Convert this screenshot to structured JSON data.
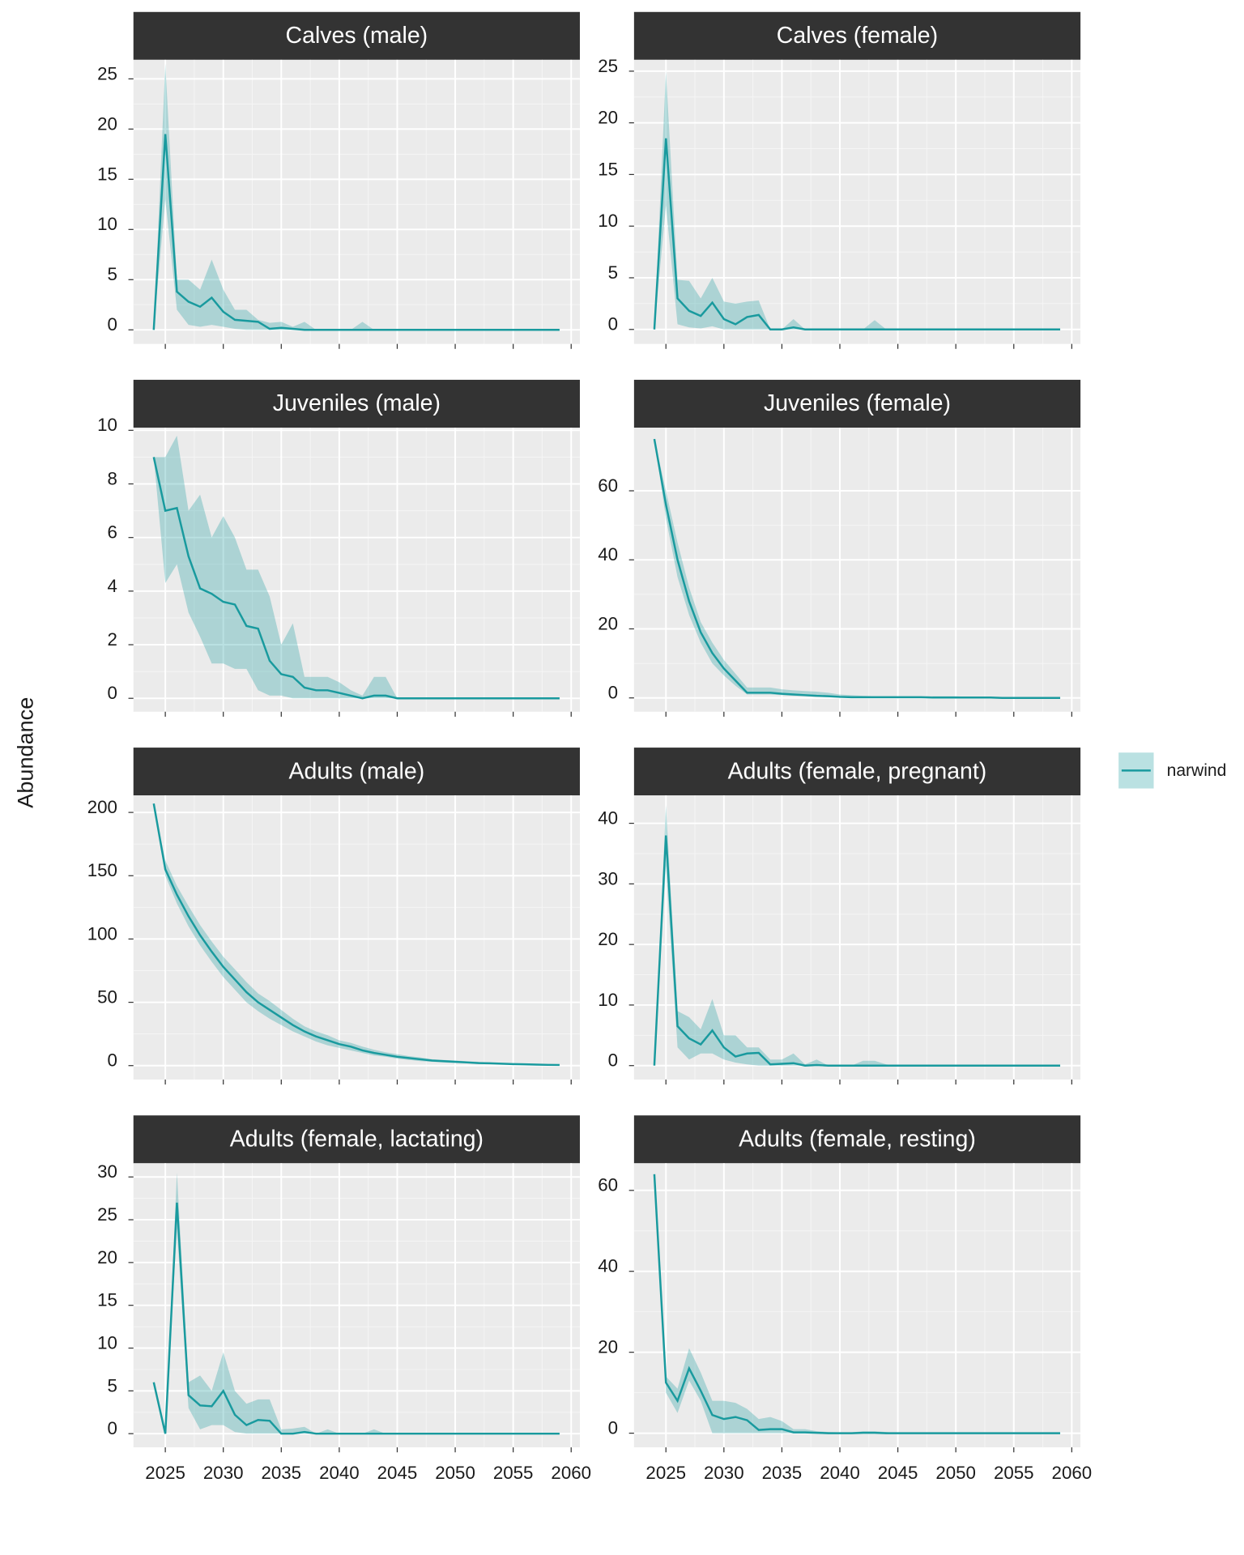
{
  "chart_data": {
    "type": "line",
    "ylabel": "Abundance",
    "series_name": "narwind",
    "color": "#199a9e",
    "fill_alpha": 0.3,
    "x": [
      2024,
      2025,
      2026,
      2027,
      2028,
      2029,
      2030,
      2031,
      2032,
      2033,
      2034,
      2035,
      2036,
      2037,
      2038,
      2039,
      2040,
      2041,
      2042,
      2043,
      2044,
      2045,
      2046,
      2047,
      2048,
      2049,
      2050,
      2051,
      2052,
      2053,
      2054,
      2055,
      2056,
      2057,
      2058,
      2059
    ],
    "xlim": [
      2022.25,
      2060.75
    ],
    "xticks": [
      2025,
      2030,
      2035,
      2040,
      2045,
      2050,
      2055,
      2060
    ],
    "panels": [
      {
        "title": "Calves (male)",
        "ylim": [
          -1.4,
          26.9
        ],
        "yticks": [
          0,
          5,
          10,
          15,
          20,
          25
        ],
        "values": [
          0,
          19.5,
          3.8,
          2.8,
          2.3,
          3.2,
          1.8,
          1.0,
          0.9,
          0.8,
          0.1,
          0.2,
          0.1,
          0,
          0,
          0,
          0,
          0,
          0,
          0,
          0,
          0,
          0,
          0,
          0,
          0,
          0,
          0,
          0,
          0,
          0,
          0,
          0,
          0,
          0,
          0
        ],
        "lower": [
          0,
          13,
          2,
          0.5,
          0.3,
          0.5,
          0.3,
          0.1,
          0,
          0,
          0,
          0,
          0,
          0,
          0,
          0,
          0,
          0,
          0,
          0,
          0,
          0,
          0,
          0,
          0,
          0,
          0,
          0,
          0,
          0,
          0,
          0,
          0,
          0,
          0,
          0
        ],
        "upper": [
          0,
          26.5,
          5,
          5,
          4,
          7,
          4,
          2,
          2,
          1,
          0.7,
          0.8,
          0.3,
          0.8,
          0,
          0,
          0,
          0,
          0.8,
          0,
          0,
          0,
          0,
          0,
          0,
          0,
          0,
          0,
          0,
          0,
          0,
          0,
          0,
          0,
          0,
          0
        ]
      },
      {
        "title": "Calves (female)",
        "ylim": [
          -1.4,
          26.1
        ],
        "yticks": [
          0,
          5,
          10,
          15,
          20,
          25
        ],
        "values": [
          0,
          18.5,
          3,
          1.8,
          1.3,
          2.6,
          1.0,
          0.5,
          1.2,
          1.4,
          0,
          0,
          0.2,
          0,
          0,
          0,
          0,
          0,
          0,
          0,
          0,
          0,
          0,
          0,
          0,
          0,
          0,
          0,
          0,
          0,
          0,
          0,
          0,
          0,
          0,
          0
        ],
        "lower": [
          0,
          12,
          0.5,
          0.2,
          0.1,
          0.3,
          0,
          0,
          0,
          0,
          0,
          0,
          0,
          0,
          0,
          0,
          0,
          0,
          0,
          0,
          0,
          0,
          0,
          0,
          0,
          0,
          0,
          0,
          0,
          0,
          0,
          0,
          0,
          0,
          0,
          0
        ],
        "upper": [
          0,
          25,
          4.8,
          4.7,
          3,
          5,
          2.7,
          2.5,
          2.7,
          2.8,
          0,
          0,
          1,
          0,
          0,
          0,
          0,
          0,
          0,
          0.9,
          0,
          0,
          0,
          0,
          0,
          0,
          0,
          0,
          0,
          0,
          0,
          0,
          0,
          0,
          0,
          0
        ]
      },
      {
        "title": "Juveniles (male)",
        "ylim": [
          -0.5,
          10.1
        ],
        "yticks": [
          0,
          2,
          4,
          6,
          8,
          10
        ],
        "values": [
          9,
          7,
          7.1,
          5.3,
          4.1,
          3.9,
          3.6,
          3.5,
          2.7,
          2.6,
          1.4,
          0.9,
          0.8,
          0.4,
          0.3,
          0.3,
          0.2,
          0.1,
          0,
          0.1,
          0.1,
          0,
          0,
          0,
          0,
          0,
          0,
          0,
          0,
          0,
          0,
          0,
          0,
          0,
          0,
          0
        ],
        "lower": [
          9,
          4.3,
          5,
          3.2,
          2.3,
          1.3,
          1.3,
          1.1,
          1.1,
          0.3,
          0.1,
          0.1,
          0,
          0,
          0,
          0,
          0,
          0,
          0,
          0,
          0,
          0,
          0,
          0,
          0,
          0,
          0,
          0,
          0,
          0,
          0,
          0,
          0,
          0,
          0,
          0
        ],
        "upper": [
          9,
          9,
          9.8,
          7,
          7.6,
          6,
          6.8,
          6,
          4.8,
          4.8,
          3.8,
          2,
          2.8,
          0.8,
          0.8,
          0.8,
          0.6,
          0.3,
          0.1,
          0.8,
          0.8,
          0,
          0,
          0,
          0,
          0,
          0,
          0,
          0,
          0,
          0,
          0,
          0,
          0,
          0,
          0
        ]
      },
      {
        "title": "Juveniles (female)",
        "ylim": [
          -4,
          78.3
        ],
        "yticks": [
          0,
          20,
          40,
          60
        ],
        "values": [
          75,
          56,
          40,
          28,
          19,
          13,
          8.5,
          5,
          1.5,
          1.5,
          1.5,
          1.2,
          1,
          0.8,
          0.6,
          0.5,
          0.3,
          0.2,
          0.2,
          0.2,
          0.2,
          0.2,
          0.2,
          0.2,
          0.1,
          0.1,
          0.1,
          0.1,
          0.1,
          0.1,
          0,
          0,
          0,
          0,
          0,
          0
        ],
        "lower": [
          75,
          52,
          35,
          24,
          16,
          10,
          6.5,
          3.5,
          1,
          1,
          1,
          0.8,
          0.6,
          0.5,
          0.3,
          0.2,
          0.1,
          0,
          0,
          0,
          0,
          0,
          0,
          0,
          0,
          0,
          0,
          0,
          0,
          0,
          0,
          0,
          0,
          0,
          0,
          0
        ],
        "upper": [
          75,
          60,
          45,
          32,
          22,
          16,
          11,
          7,
          3,
          3,
          3,
          2.5,
          2.2,
          2,
          1.8,
          1.5,
          1,
          0.8,
          0.6,
          0.5,
          0.5,
          0.5,
          0.5,
          0.5,
          0.5,
          0.5,
          0.5,
          0.3,
          0.3,
          0.3,
          0.3,
          0.2,
          0.2,
          0.2,
          0.2,
          0.2
        ]
      },
      {
        "title": "Adults (male)",
        "ylim": [
          -11,
          213.4
        ],
        "yticks": [
          0,
          50,
          100,
          150,
          200
        ],
        "values": [
          207,
          155,
          135,
          118,
          103,
          90,
          78,
          68,
          58,
          50,
          44,
          38,
          32,
          27,
          23,
          20,
          17,
          15,
          12,
          10,
          8.5,
          7,
          6,
          5,
          4,
          3.5,
          3,
          2.5,
          2,
          1.8,
          1.5,
          1.2,
          1,
          0.8,
          0.6,
          0.5
        ],
        "lower": [
          207,
          150,
          128,
          110,
          95,
          82,
          70,
          60,
          50,
          43,
          37,
          32,
          27,
          23,
          19,
          16,
          14,
          12,
          10,
          8,
          7,
          5.5,
          4.5,
          3.5,
          3,
          2.5,
          2,
          1.8,
          1.5,
          1.2,
          1,
          0.8,
          0.6,
          0.5,
          0.4,
          0.3
        ],
        "upper": [
          207,
          162,
          142,
          126,
          111,
          98,
          86,
          76,
          66,
          57,
          51,
          44,
          37,
          31,
          27,
          24,
          20,
          18,
          15,
          12.5,
          10.5,
          9,
          7.5,
          6.5,
          5,
          4.5,
          4,
          3.5,
          3,
          2.5,
          2,
          1.7,
          1.4,
          1.1,
          0.9,
          0.8
        ]
      },
      {
        "title": "Adults (female, pregnant)",
        "ylim": [
          -2.3,
          44.6
        ],
        "yticks": [
          0,
          10,
          20,
          30,
          40
        ],
        "values": [
          0,
          38,
          6.5,
          4.5,
          3.5,
          5.8,
          3,
          1.5,
          2,
          2.1,
          0.2,
          0.3,
          0.4,
          0,
          0.1,
          0,
          0,
          0,
          0,
          0,
          0,
          0,
          0,
          0,
          0,
          0,
          0,
          0,
          0,
          0,
          0,
          0,
          0,
          0,
          0,
          0
        ],
        "lower": [
          0,
          33,
          3,
          1,
          2,
          2,
          1,
          0.5,
          0.2,
          0,
          0,
          0,
          0,
          0,
          0,
          0,
          0,
          0,
          0,
          0,
          0,
          0,
          0,
          0,
          0,
          0,
          0,
          0,
          0,
          0,
          0,
          0,
          0,
          0,
          0,
          0
        ],
        "upper": [
          0,
          43,
          9,
          8,
          6,
          11,
          5,
          5,
          3,
          3,
          1,
          1,
          2,
          0.2,
          1,
          0,
          0,
          0,
          0.8,
          0.8,
          0.2,
          0,
          0,
          0,
          0,
          0,
          0,
          0,
          0,
          0,
          0,
          0,
          0,
          0,
          0,
          0
        ]
      },
      {
        "title": "Adults (female, lactating)",
        "ylim": [
          -1.6,
          31.6
        ],
        "yticks": [
          0,
          5,
          10,
          15,
          20,
          25,
          30
        ],
        "values": [
          6,
          0,
          27,
          4.5,
          3.3,
          3.2,
          5,
          2.2,
          1,
          1.6,
          1.5,
          0,
          0,
          0.2,
          0,
          0,
          0,
          0,
          0,
          0,
          0,
          0,
          0,
          0,
          0,
          0,
          0,
          0,
          0,
          0,
          0,
          0,
          0,
          0,
          0,
          0
        ],
        "lower": [
          6,
          0,
          24,
          3,
          0.5,
          1,
          1,
          0.2,
          0,
          0,
          0,
          0,
          0,
          0,
          0,
          0,
          0,
          0,
          0,
          0,
          0,
          0,
          0,
          0,
          0,
          0,
          0,
          0,
          0,
          0,
          0,
          0,
          0,
          0,
          0,
          0
        ],
        "upper": [
          6,
          0,
          30.5,
          6,
          6.8,
          5,
          9.5,
          5,
          3.5,
          4,
          4,
          0.5,
          0.6,
          0.8,
          0,
          0.5,
          0,
          0,
          0,
          0.5,
          0,
          0,
          0,
          0,
          0,
          0,
          0,
          0,
          0,
          0,
          0,
          0,
          0,
          0,
          0,
          0
        ]
      },
      {
        "title": "Adults (female, resting)",
        "ylim": [
          -3.5,
          66.7
        ],
        "yticks": [
          0,
          20,
          40,
          60
        ],
        "values": [
          64,
          12.5,
          8,
          16,
          10.5,
          4.5,
          3.5,
          4,
          3.2,
          0.8,
          1,
          1,
          0.2,
          0.2,
          0.1,
          0,
          0,
          0,
          0.1,
          0.1,
          0,
          0,
          0,
          0,
          0,
          0,
          0,
          0,
          0,
          0,
          0,
          0,
          0,
          0,
          0,
          0
        ],
        "lower": [
          64,
          10,
          5,
          13,
          8,
          0,
          0,
          0,
          0,
          0,
          0,
          0,
          0,
          0,
          0,
          0,
          0,
          0,
          0,
          0,
          0,
          0,
          0,
          0,
          0,
          0,
          0,
          0,
          0,
          0,
          0,
          0,
          0,
          0,
          0,
          0
        ],
        "upper": [
          64,
          14,
          11,
          21,
          15,
          8,
          8,
          7.5,
          6,
          3.5,
          4,
          3,
          1,
          1,
          0.5,
          0.3,
          0.2,
          0.2,
          0.5,
          0.5,
          0.3,
          0,
          0,
          0,
          0,
          0,
          0,
          0,
          0,
          0,
          0,
          0,
          0,
          0,
          0,
          0
        ]
      }
    ]
  }
}
